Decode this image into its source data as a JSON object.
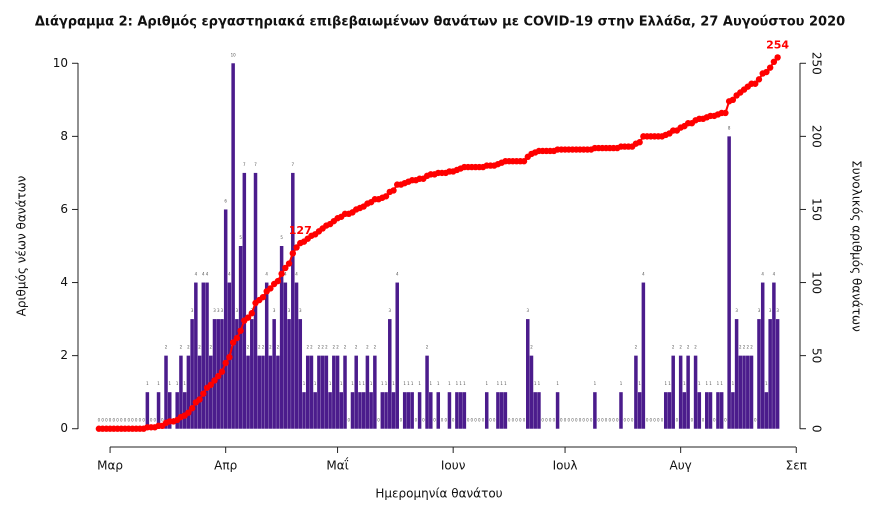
{
  "chart_data": {
    "type": "bar_line",
    "title": "Διάγραμμα 2: Αριθμός εργαστηριακά επιβεβαιωμένων θανάτων με COVID-19 στην Ελλάδα, 27 Αυγούστου 2020",
    "x_label": "Ημερομηνία θανάτου",
    "y_label": "Αριθμός νέων θανάτων",
    "y2_label": "Συνολικός αριθμός θανάτων",
    "x": [
      -3,
      -2,
      -1,
      0,
      1,
      2,
      3,
      4,
      5,
      6,
      7,
      8,
      9,
      10,
      11,
      12,
      13,
      14,
      15,
      16,
      17,
      18,
      19,
      20,
      21,
      22,
      23,
      24,
      25,
      26,
      27,
      28,
      29,
      30,
      31,
      32,
      33,
      34,
      35,
      36,
      37,
      38,
      39,
      40,
      41,
      42,
      43,
      44,
      45,
      46,
      47,
      48,
      49,
      50,
      51,
      52,
      53,
      54,
      55,
      56,
      57,
      58,
      59,
      60,
      61,
      62,
      63,
      64,
      65,
      66,
      67,
      68,
      69,
      70,
      71,
      72,
      73,
      74,
      75,
      76,
      77,
      78,
      79,
      80,
      81,
      82,
      83,
      84,
      85,
      86,
      87,
      88,
      89,
      90,
      91,
      92,
      93,
      94,
      95,
      96,
      97,
      98,
      99,
      100,
      101,
      102,
      103,
      104,
      105,
      106,
      107,
      108,
      109,
      110,
      111,
      112,
      113,
      114,
      115,
      116,
      117,
      118,
      119,
      120,
      121,
      122,
      123,
      124,
      125,
      126,
      127,
      128,
      129,
      130,
      131,
      132,
      133,
      134,
      135,
      136,
      137,
      138,
      139,
      140,
      141,
      142,
      143,
      144,
      145,
      146,
      147,
      148,
      149,
      150,
      151,
      152,
      153,
      154,
      155,
      156,
      157,
      158,
      159,
      160,
      161,
      162,
      163,
      164,
      165,
      166,
      167,
      168,
      169,
      170,
      171,
      172,
      173,
      174,
      175,
      176,
      177,
      178,
      179
    ],
    "series": [
      {
        "type": "bar",
        "color": "#4b1c8c",
        "values": [
          0,
          0,
          0,
          0,
          0,
          0,
          0,
          0,
          0,
          0,
          0,
          0,
          0,
          1,
          0,
          0,
          1,
          0,
          2,
          1,
          0,
          1,
          2,
          1,
          2,
          3,
          4,
          2,
          4,
          4,
          2,
          3,
          3,
          3,
          6,
          4,
          10,
          3,
          5,
          7,
          2,
          3,
          7,
          2,
          2,
          4,
          2,
          3,
          2,
          5,
          4,
          3,
          7,
          4,
          3,
          1,
          2,
          2,
          1,
          2,
          2,
          2,
          1,
          2,
          2,
          1,
          2,
          0,
          1,
          2,
          1,
          1,
          2,
          1,
          2,
          0,
          1,
          1,
          3,
          1,
          4,
          0,
          1,
          1,
          1,
          0,
          1,
          0,
          2,
          1,
          0,
          1,
          0,
          0,
          1,
          0,
          1,
          1,
          1,
          0,
          0,
          0,
          0,
          0,
          1,
          0,
          0,
          1,
          1,
          1,
          0,
          0,
          0,
          0,
          0,
          3,
          2,
          1,
          1,
          0,
          0,
          0,
          0,
          1,
          0,
          0,
          0,
          0,
          0,
          0,
          0,
          0,
          0,
          1,
          0,
          0,
          0,
          0,
          0,
          0,
          1,
          0,
          0,
          0,
          2,
          1,
          4,
          0,
          0,
          0,
          0,
          0,
          1,
          1,
          2,
          0,
          2,
          1,
          2,
          0,
          2,
          1,
          0,
          1,
          1,
          0,
          1,
          1,
          0,
          8,
          1,
          3,
          2,
          2,
          2,
          2,
          0,
          3,
          4,
          1,
          3,
          4,
          3
        ]
      },
      {
        "type": "line",
        "axis": "y2",
        "color": "#ff0000",
        "values": [
          0,
          0,
          0,
          0,
          0,
          0,
          0,
          0,
          0,
          0,
          0,
          0,
          0,
          1,
          1,
          1,
          2,
          2,
          4,
          5,
          5,
          6,
          8,
          9,
          11,
          14,
          18,
          20,
          24,
          28,
          30,
          33,
          36,
          39,
          45,
          49,
          59,
          62,
          67,
          74,
          76,
          79,
          86,
          88,
          90,
          94,
          96,
          99,
          101,
          106,
          110,
          113,
          120,
          124,
          127,
          128,
          130,
          132,
          133,
          135,
          137,
          139,
          140,
          142,
          144,
          145,
          147,
          147,
          148,
          150,
          151,
          152,
          154,
          155,
          157,
          157,
          158,
          159,
          162,
          163,
          167,
          167,
          168,
          169,
          170,
          170,
          171,
          171,
          173,
          174,
          174,
          175,
          175,
          175,
          176,
          176,
          177,
          178,
          179,
          179,
          179,
          179,
          179,
          179,
          180,
          180,
          180,
          181,
          182,
          183,
          183,
          183,
          183,
          183,
          183,
          186,
          188,
          189,
          190,
          190,
          190,
          190,
          190,
          191,
          191,
          191,
          191,
          191,
          191,
          191,
          191,
          191,
          191,
          192,
          192,
          192,
          192,
          192,
          192,
          192,
          193,
          193,
          193,
          193,
          195,
          196,
          200,
          200,
          200,
          200,
          200,
          200,
          201,
          202,
          204,
          204,
          206,
          207,
          209,
          209,
          211,
          212,
          212,
          213,
          214,
          214,
          215,
          216,
          216,
          224,
          225,
          228,
          230,
          232,
          234,
          236,
          236,
          239,
          243,
          244,
          247,
          251,
          254
        ]
      }
    ],
    "annotations": [
      {
        "label": "127",
        "x": 51,
        "y": 127
      },
      {
        "label": "254",
        "x": 179,
        "y": 254
      }
    ],
    "xlim": [
      -8.6,
      185
    ],
    "xticks": [
      {
        "value": 0,
        "label": "Μαρ"
      },
      {
        "value": 31,
        "label": "Απρ"
      },
      {
        "value": 61,
        "label": "Μαΐ"
      },
      {
        "value": 92,
        "label": "Ιουν"
      },
      {
        "value": 122,
        "label": "Ιουλ"
      },
      {
        "value": 153,
        "label": "Αυγ"
      },
      {
        "value": 184,
        "label": "Σεπ"
      }
    ],
    "ylim": [
      -0.5,
      10.5
    ],
    "yticks": [
      0,
      2,
      4,
      6,
      8,
      10
    ],
    "y2lim": [
      -12.5,
      262.5
    ],
    "y2ticks": [
      0,
      50,
      100,
      150,
      200,
      250
    ]
  }
}
